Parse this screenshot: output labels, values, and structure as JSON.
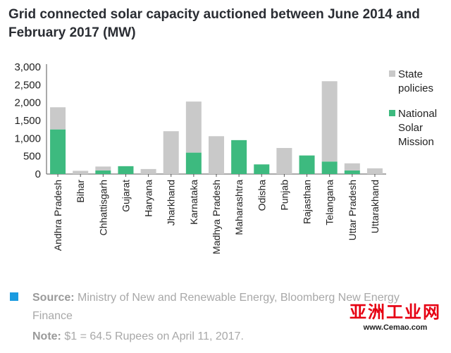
{
  "title": "Grid connected solar capacity auctioned between June 2014 and February 2017 (MW)",
  "chart_data": {
    "type": "bar",
    "stacked": true,
    "categories": [
      "Andhra Pradesh",
      "Bihar",
      "Chhattisgarh",
      "Gujarat",
      "Haryana",
      "Jharkhand",
      "Karnataka",
      "Madhya Pradesh",
      "Maharashtra",
      "Odisha",
      "Punjab",
      "Rajasthan",
      "Telangana",
      "Uttar Pradesh",
      "Uttarakhand"
    ],
    "series": [
      {
        "name": "National Solar Mission",
        "color": "#3dba7f",
        "values": [
          1250,
          0,
          100,
          220,
          0,
          0,
          600,
          0,
          950,
          270,
          0,
          520,
          350,
          100,
          0
        ]
      },
      {
        "name": "State policies",
        "color": "#c9c9c9",
        "values": [
          620,
          90,
          110,
          0,
          140,
          1200,
          1430,
          1060,
          0,
          0,
          730,
          0,
          2250,
          200,
          160
        ]
      }
    ],
    "ylim": [
      0,
      3000
    ],
    "yticks": [
      "0",
      "500",
      "1,000",
      "1,500",
      "2,000",
      "2,500",
      "3,000"
    ],
    "legend_position": "right",
    "grid": false
  },
  "footer": {
    "source_label": "Source:",
    "source_text": " Ministry of New and Renewable Energy, Bloomberg New Energy Finance",
    "note_label": "Note:",
    "note_text": " $1 = 64.5 Rupees on April 11, 2017."
  },
  "watermark": {
    "main": "亚洲工业网",
    "url": "www.Cemao.com"
  }
}
